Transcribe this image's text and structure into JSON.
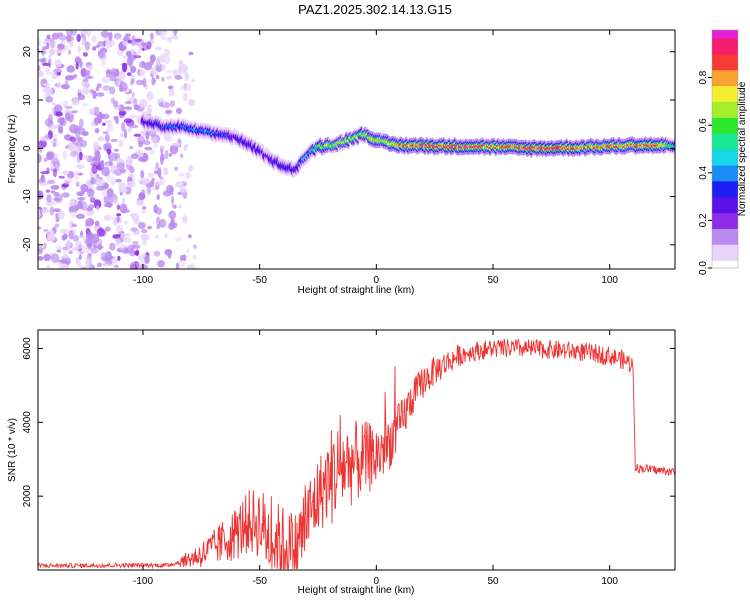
{
  "title": "PAZ1.2025.302.14.13.G15",
  "chart_data": [
    {
      "type": "heatmap",
      "name": "spectrogram",
      "xlabel": "Height of straight line (km)",
      "ylabel": "Frequency (Hz)",
      "xlim": [
        -145,
        128
      ],
      "ylim": [
        -25,
        24.5
      ],
      "xticks": [
        -100,
        -50,
        0,
        50,
        100
      ],
      "yticks": [
        -20,
        -10,
        0,
        10,
        20
      ],
      "colorbar": {
        "label": "Normalized spectral amplitude",
        "range": [
          0,
          1
        ],
        "ticks": [
          0.0,
          0.2,
          0.4,
          0.6,
          0.8
        ],
        "colors": [
          "#ffffff",
          "#e8d4fb",
          "#b98af0",
          "#8c2ce8",
          "#5a10e6",
          "#1c1ef2",
          "#1a8cf5",
          "#16d6e8",
          "#19e896",
          "#2fe82e",
          "#a6ee2c",
          "#f2ee30",
          "#f8a232",
          "#f63a36",
          "#f51e6e",
          "#e61fd6"
        ]
      },
      "ridge": {
        "x": [
          -100,
          -95,
          -90,
          -85,
          -80,
          -75,
          -70,
          -65,
          -60,
          -55,
          -50,
          -45,
          -40,
          -35,
          -30,
          -25,
          -20,
          -15,
          -10,
          -5,
          0,
          5,
          10,
          20,
          30,
          40,
          50,
          60,
          70,
          80,
          90,
          100,
          110,
          120,
          128
        ],
        "freq": [
          5.5,
          5.0,
          4.3,
          4.5,
          4.0,
          3.6,
          3.0,
          2.8,
          2.2,
          0.8,
          -0.6,
          -2.5,
          -3.6,
          -4.5,
          -1.5,
          0.3,
          0.6,
          1.2,
          2.2,
          3.0,
          1.6,
          1.0,
          0.6,
          0.5,
          0.4,
          0.4,
          0.3,
          0.1,
          0.0,
          0.1,
          0.2,
          0.4,
          0.6,
          0.6,
          0.5
        ],
        "amplitude": [
          0.3,
          0.35,
          0.35,
          0.4,
          0.4,
          0.42,
          0.4,
          0.35,
          0.3,
          0.35,
          0.3,
          0.3,
          0.35,
          0.3,
          0.45,
          0.6,
          0.7,
          0.75,
          0.7,
          0.72,
          0.75,
          0.8,
          0.85,
          0.95,
          0.95,
          0.9,
          0.8,
          0.95,
          0.95,
          0.9,
          0.85,
          0.9,
          0.92,
          0.9,
          0.5
        ]
      }
    },
    {
      "type": "line",
      "name": "snr",
      "xlabel": "Height of straight line (km)",
      "ylabel": "SNR (10 * v/v)",
      "xlim": [
        -145,
        128
      ],
      "ylim": [
        0,
        6500
      ],
      "xticks": [
        -100,
        -50,
        0,
        50,
        100
      ],
      "yticks": [
        2000,
        4000,
        6000
      ],
      "color": "#ee3333",
      "series": [
        {
          "name": "SNR",
          "x": [
            -145,
            -130,
            -110,
            -90,
            -85,
            -80,
            -75,
            -70,
            -65,
            -60,
            -55,
            -50,
            -45,
            -40,
            -35,
            -30,
            -25,
            -20,
            -15,
            -10,
            -5,
            0,
            5,
            10,
            15,
            20,
            25,
            30,
            35,
            40,
            45,
            50,
            60,
            70,
            80,
            90,
            100,
            105,
            109,
            110,
            111,
            112,
            115,
            120,
            128
          ],
          "y": [
            120,
            120,
            130,
            130,
            200,
            300,
            420,
            580,
            800,
            1000,
            1300,
            1300,
            800,
            700,
            500,
            1300,
            2000,
            2500,
            2800,
            2900,
            3000,
            3100,
            3400,
            3900,
            4600,
            5100,
            5400,
            5600,
            5800,
            5900,
            5950,
            6000,
            6000,
            5980,
            5950,
            5900,
            5800,
            5700,
            5600,
            5500,
            2800,
            2750,
            2750,
            2700,
            2650
          ]
        }
      ]
    }
  ]
}
